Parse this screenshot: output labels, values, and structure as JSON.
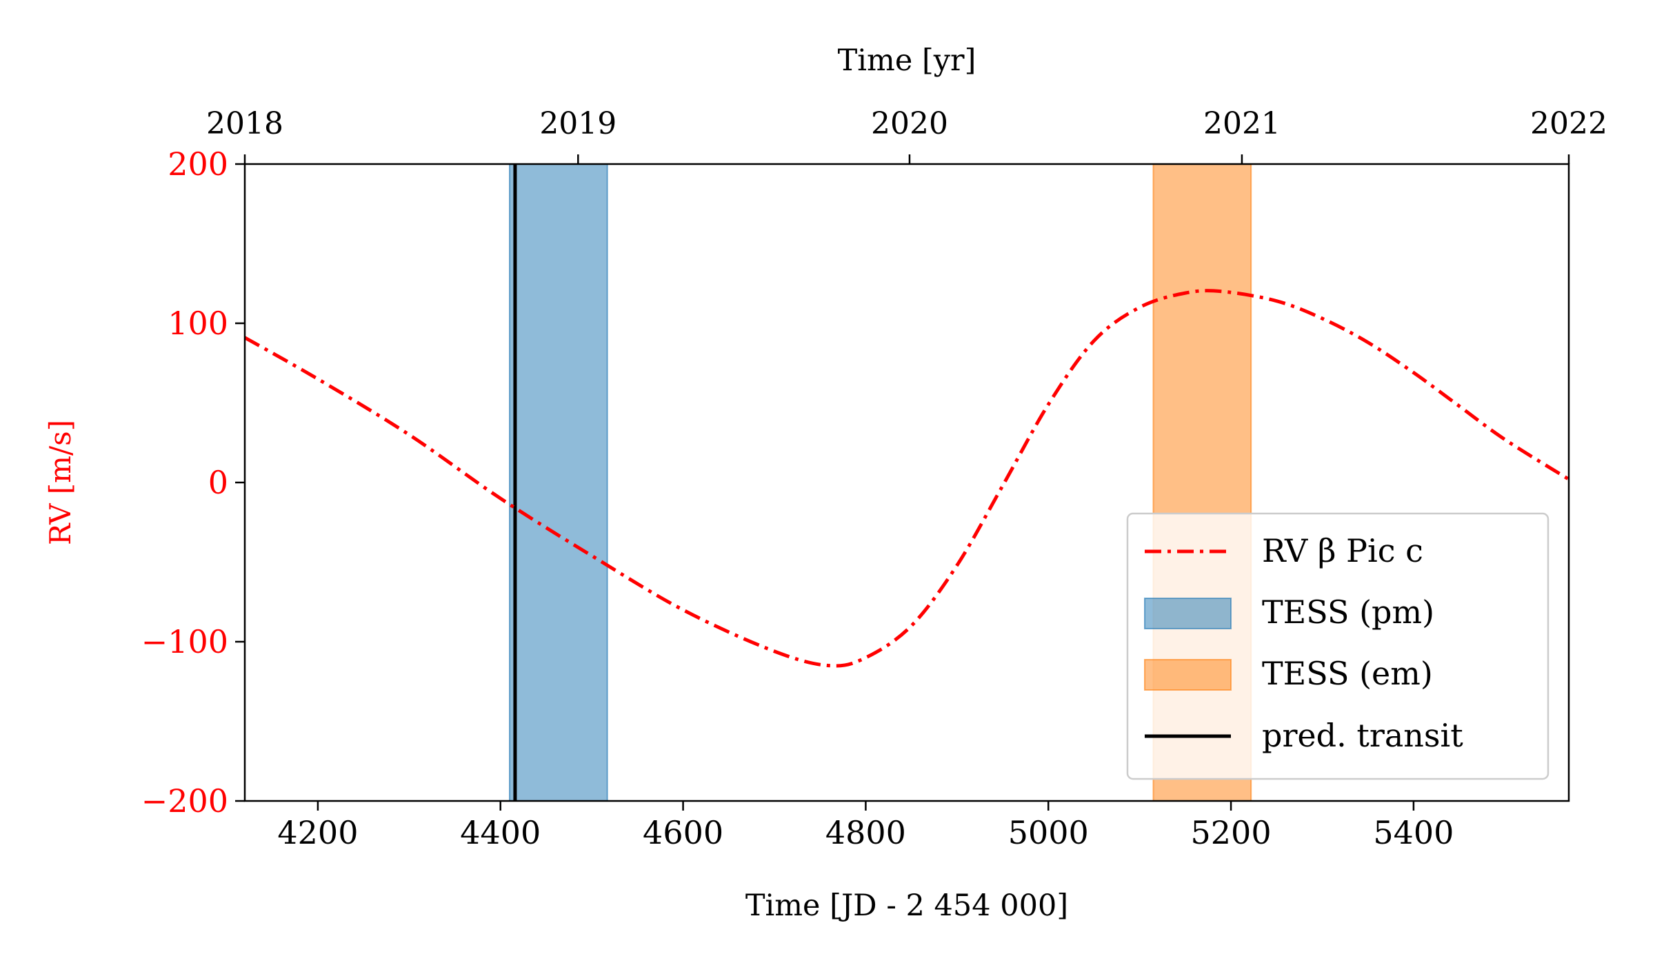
{
  "chart_data": {
    "type": "line",
    "xlabel": "Time [JD - 2 454 000]",
    "ylabel": "RV [m/s]",
    "top_xlabel": "Time [yr]",
    "xlim": [
      4120,
      5570
    ],
    "ylim": [
      -200,
      200
    ],
    "x_ticks": [
      4200,
      4400,
      4600,
      4800,
      5000,
      5200,
      5400
    ],
    "y_ticks": [
      200,
      100,
      0,
      -100,
      -200
    ],
    "y_tick_labels": [
      "200",
      "100",
      "0",
      "−100",
      "−200"
    ],
    "top_ticks": [
      {
        "label": "2018",
        "x": 4120
      },
      {
        "label": "2019",
        "x": 4485
      },
      {
        "label": "2020",
        "x": 4848
      },
      {
        "label": "2021",
        "x": 5212
      },
      {
        "label": "2022",
        "x": 5570
      }
    ],
    "grid": false,
    "legend_position": "lower-right",
    "series": [
      {
        "name": "RV β Pic c",
        "color": "#ff0000",
        "style": "dash-dot",
        "x": [
          4120,
          4200,
          4300,
          4400,
          4500,
          4600,
          4700,
          4760,
          4800,
          4850,
          4900,
          4950,
          5000,
          5050,
          5100,
          5150,
          5190,
          5250,
          5300,
          5350,
          5400,
          5450,
          5500,
          5570
        ],
        "y": [
          91,
          65,
          30,
          -10,
          -46,
          -80,
          -106,
          -115,
          -110,
          -90,
          -52,
          -2,
          49,
          89,
          110,
          119,
          120,
          114,
          103,
          88,
          69,
          48,
          27,
          2
        ]
      }
    ],
    "spans": [
      {
        "name": "TESS (pm)",
        "x0": 4410,
        "x1": 4517,
        "color": "#1f77b4",
        "opacity": 0.5
      },
      {
        "name": "TESS (em)",
        "x0": 5115,
        "x1": 5222,
        "color": "#ff7f0e",
        "opacity": 0.5
      }
    ],
    "vlines": [
      {
        "name": "pred. transit",
        "x": 4416,
        "color": "#000000"
      }
    ],
    "legend": [
      "RV β Pic c",
      "TESS (pm)",
      "TESS (em)",
      "pred. transit"
    ],
    "colors": {
      "rv": "#ff0000",
      "axis": "#000000"
    }
  }
}
